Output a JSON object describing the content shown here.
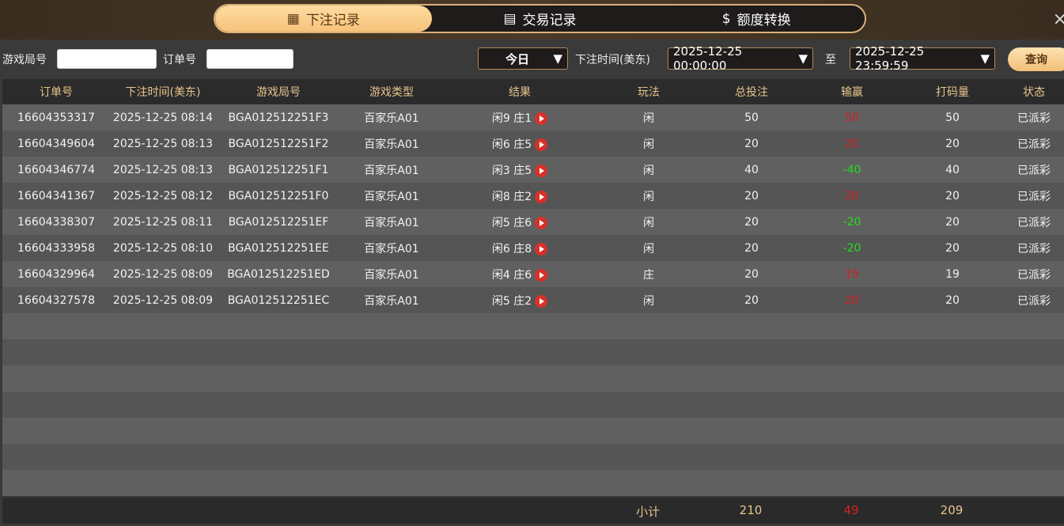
{
  "tabs": [
    {
      "label": "下注记录",
      "icon": "calendar-icon",
      "active": true
    },
    {
      "label": "交易记录",
      "icon": "clipboard-icon"
    },
    {
      "label": "额度转换",
      "icon": "coins-icon"
    }
  ],
  "close": "×",
  "filters": {
    "game_no_label": "游戏局号",
    "game_no_value": "",
    "order_no_label": "订单号",
    "order_no_value": "",
    "range": "今日",
    "time_label": "下注时间(美东)",
    "start": "2025-12-25 00:00:00",
    "to": "至",
    "end": "2025-12-25 23:59:59",
    "query": "查询"
  },
  "columns": [
    "订单号",
    "下注时间(美东)",
    "游戏局号",
    "游戏类型",
    "结果",
    "玩法",
    "总投注",
    "输赢",
    "打码量",
    "状态"
  ],
  "rows": [
    [
      "16604353317",
      "2025-12-25 08:14",
      "BGA012512251F3",
      "百家乐A01",
      "闲9 庄1",
      "闲",
      "50",
      "50",
      "50",
      "已派彩"
    ],
    [
      "16604349604",
      "2025-12-25 08:13",
      "BGA012512251F2",
      "百家乐A01",
      "闲6 庄5",
      "闲",
      "20",
      "20",
      "20",
      "已派彩"
    ],
    [
      "16604346774",
      "2025-12-25 08:13",
      "BGA012512251F1",
      "百家乐A01",
      "闲3 庄5",
      "闲",
      "40",
      "-40",
      "40",
      "已派彩"
    ],
    [
      "16604341367",
      "2025-12-25 08:12",
      "BGA012512251F0",
      "百家乐A01",
      "闲8 庄2",
      "闲",
      "20",
      "20",
      "20",
      "已派彩"
    ],
    [
      "16604338307",
      "2025-12-25 08:11",
      "BGA012512251EF",
      "百家乐A01",
      "闲5 庄6",
      "闲",
      "20",
      "-20",
      "20",
      "已派彩"
    ],
    [
      "16604333958",
      "2025-12-25 08:10",
      "BGA012512251EE",
      "百家乐A01",
      "闲6 庄8",
      "闲",
      "20",
      "-20",
      "20",
      "已派彩"
    ],
    [
      "16604329964",
      "2025-12-25 08:09",
      "BGA012512251ED",
      "百家乐A01",
      "闲4 庄6",
      "庄",
      "20",
      "19",
      "19",
      "已派彩"
    ],
    [
      "16604327578",
      "2025-12-25 08:09",
      "BGA012512251EC",
      "百家乐A01",
      "闲5 庄2",
      "闲",
      "20",
      "20",
      "20",
      "已派彩"
    ]
  ],
  "subtotal": {
    "label": "小计",
    "total_bet": "210",
    "win_loss": "49",
    "valid_bet": "209"
  },
  "colors": {
    "win": "#d42020",
    "loss": "#22dd22",
    "accent": "#e8c48e"
  }
}
